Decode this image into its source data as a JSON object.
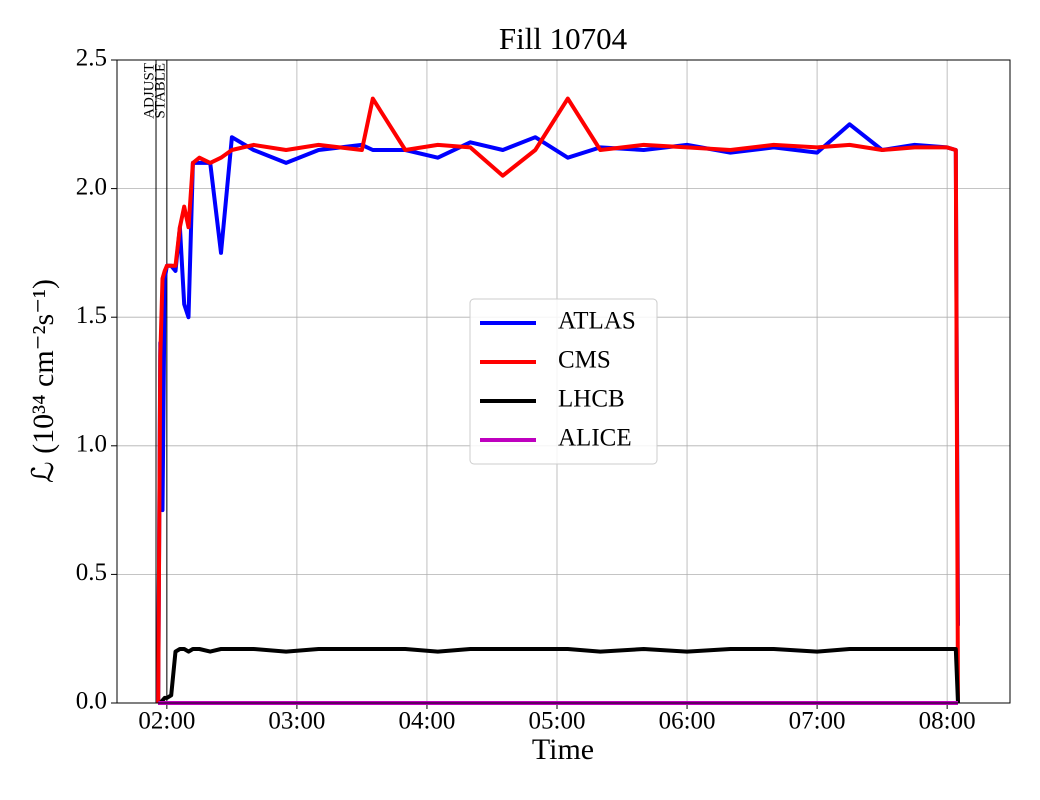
{
  "chart_data": {
    "type": "line",
    "title": "Fill 10704",
    "xlabel": "Time",
    "ylabel": "ℒ (10³⁴ cm⁻²s⁻¹)",
    "x": [
      "01:56",
      "01:57",
      "01:58",
      "01:59",
      "02:00",
      "02:02",
      "02:04",
      "02:06",
      "02:08",
      "02:10",
      "02:12",
      "02:15",
      "02:20",
      "02:25",
      "02:30",
      "02:40",
      "02:55",
      "03:10",
      "03:30",
      "03:35",
      "03:50",
      "04:05",
      "04:20",
      "04:35",
      "04:50",
      "05:05",
      "05:20",
      "05:40",
      "06:00",
      "06:20",
      "06:40",
      "07:00",
      "07:15",
      "07:30",
      "07:45",
      "08:00",
      "08:04",
      "08:05"
    ],
    "series": [
      {
        "name": "ATLAS",
        "color": "#0000ff",
        "values": [
          0,
          1.4,
          0.75,
          1.65,
          1.7,
          1.7,
          1.68,
          1.85,
          1.55,
          1.5,
          2.1,
          2.1,
          2.1,
          1.75,
          2.2,
          2.15,
          2.1,
          2.15,
          2.17,
          2.15,
          2.15,
          2.12,
          2.18,
          2.15,
          2.2,
          2.12,
          2.16,
          2.15,
          2.17,
          2.14,
          2.16,
          2.14,
          2.25,
          2.15,
          2.17,
          2.16,
          2.15,
          0.3
        ]
      },
      {
        "name": "CMS",
        "color": "#ff0000",
        "values": [
          0,
          1.35,
          1.65,
          1.68,
          1.7,
          1.7,
          1.7,
          1.85,
          1.93,
          1.85,
          2.1,
          2.12,
          2.1,
          2.12,
          2.15,
          2.17,
          2.15,
          2.17,
          2.15,
          2.35,
          2.15,
          2.17,
          2.16,
          2.05,
          2.15,
          2.35,
          2.15,
          2.17,
          2.16,
          2.15,
          2.17,
          2.16,
          2.17,
          2.15,
          2.16,
          2.16,
          2.15,
          0
        ]
      },
      {
        "name": "LHCB",
        "color": "#000000",
        "values": [
          0,
          0,
          0.01,
          0.02,
          0.02,
          0.03,
          0.2,
          0.21,
          0.21,
          0.2,
          0.21,
          0.21,
          0.2,
          0.21,
          0.21,
          0.21,
          0.2,
          0.21,
          0.21,
          0.21,
          0.21,
          0.2,
          0.21,
          0.21,
          0.21,
          0.21,
          0.2,
          0.21,
          0.2,
          0.21,
          0.21,
          0.2,
          0.21,
          0.21,
          0.21,
          0.21,
          0.21,
          0
        ]
      },
      {
        "name": "ALICE",
        "color": "#bf00bf",
        "values": [
          0,
          0,
          0,
          0,
          0,
          0,
          0,
          0,
          0,
          0,
          0,
          0,
          0,
          0,
          0,
          0,
          0,
          0,
          0,
          0,
          0,
          0,
          0,
          0,
          0,
          0,
          0,
          0,
          0,
          0,
          0,
          0,
          0,
          0,
          0,
          0,
          0,
          0
        ]
      }
    ],
    "xlim": [
      "01:37",
      "08:29"
    ],
    "xticks": [
      "02:00",
      "03:00",
      "04:00",
      "05:00",
      "06:00",
      "07:00",
      "08:00"
    ],
    "ylim": [
      0,
      2.5
    ],
    "yticks": [
      {
        "value": 0,
        "label": "0.0"
      },
      0.5,
      {
        "value": 1,
        "label": "1.0"
      },
      1.5,
      {
        "value": 2,
        "label": "2.0"
      },
      2.5
    ],
    "annotations": [
      {
        "label": "ADJUST",
        "x": "01:55"
      },
      {
        "label": "STABLE",
        "x": "02:00"
      }
    ],
    "grid": true,
    "legend": "center"
  }
}
